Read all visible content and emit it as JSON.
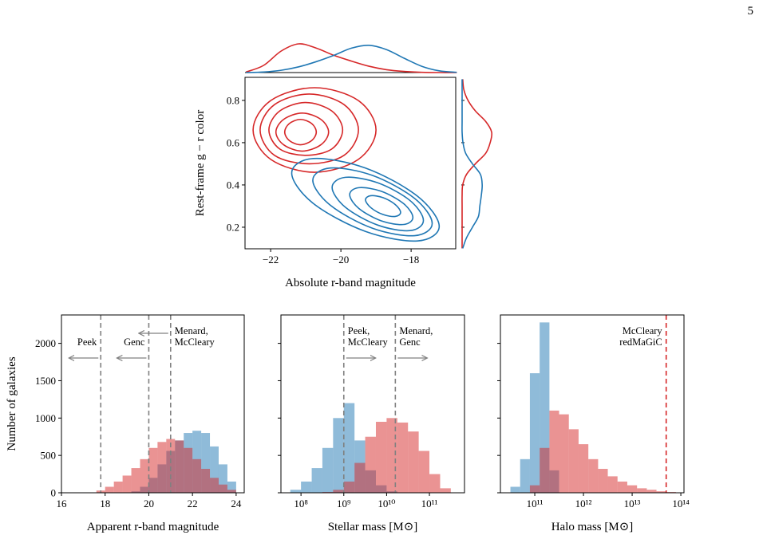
{
  "page_number": "5",
  "chart_data": [
    {
      "type": "contour",
      "xlabel": "Absolute r-band magnitude",
      "ylabel": "Rest-frame g − r color",
      "xlim": [
        -22.73,
        -16.73
      ],
      "ylim": [
        0.098,
        0.909
      ],
      "xticks": [
        {
          "value": -22,
          "label": "−22"
        },
        {
          "value": -20,
          "label": "−20"
        },
        {
          "value": -18,
          "label": "−18"
        }
      ],
      "yticks": [
        0.2,
        0.4,
        0.6,
        0.8
      ],
      "series": [
        {
          "color": "#d62728",
          "contours": [
            {
              "x": [
                -19.0,
                -19.51,
                -20.75,
                -21.99,
                -22.5,
                -21.99,
                -20.75,
                -19.51
              ],
              "y": [
                0.66,
                0.8,
                0.86,
                0.8,
                0.66,
                0.52,
                0.46,
                0.52
              ]
            },
            {
              "x": [
                -19.5,
                -19.91,
                -20.9,
                -21.89,
                -22.3,
                -21.89,
                -20.9,
                -19.91
              ],
              "y": [
                0.66,
                0.78,
                0.83,
                0.78,
                0.66,
                0.54,
                0.5,
                0.54
              ]
            },
            {
              "x": [
                -19.95,
                -20.26,
                -21.0,
                -21.74,
                -22.05,
                -21.74,
                -21.0,
                -20.26
              ],
              "y": [
                0.66,
                0.75,
                0.79,
                0.75,
                0.66,
                0.57,
                0.54,
                0.57
              ]
            },
            {
              "x": [
                -20.35,
                -20.57,
                -21.1,
                -21.63,
                -21.85,
                -21.63,
                -21.1,
                -20.57
              ],
              "y": [
                0.65,
                0.71,
                0.74,
                0.71,
                0.65,
                0.59,
                0.56,
                0.59
              ]
            },
            {
              "x": [
                -20.7,
                -20.83,
                -21.15,
                -21.47,
                -21.6,
                -21.47,
                -21.15,
                -20.83
              ],
              "y": [
                0.65,
                0.69,
                0.71,
                0.69,
                0.65,
                0.61,
                0.59,
                0.61
              ]
            }
          ]
        },
        {
          "color": "#1f77b4",
          "contours": [
            {
              "x": [
                -17.2,
                -17.82,
                -19.3,
                -20.79,
                -21.4,
                -20.79,
                -19.3,
                -17.82
              ],
              "y": [
                0.204,
                0.347,
                0.48,
                0.525,
                0.456,
                0.313,
                0.18,
                0.135
              ]
            },
            {
              "x": [
                -17.4,
                -17.9,
                -19.1,
                -20.3,
                -20.8,
                -20.3,
                -19.1,
                -17.9
              ],
              "y": [
                0.218,
                0.336,
                0.445,
                0.48,
                0.422,
                0.304,
                0.195,
                0.16
              ]
            },
            {
              "x": [
                -17.65,
                -18.03,
                -18.95,
                -19.87,
                -20.25,
                -19.87,
                -18.95,
                -18.03
              ],
              "y": [
                0.232,
                0.326,
                0.41,
                0.436,
                0.388,
                0.294,
                0.21,
                0.184
              ]
            },
            {
              "x": [
                -17.95,
                -18.21,
                -18.85,
                -19.49,
                -19.75,
                -19.49,
                -18.85,
                -18.21
              ],
              "y": [
                0.246,
                0.311,
                0.37,
                0.387,
                0.354,
                0.289,
                0.23,
                0.213
              ]
            },
            {
              "x": [
                -18.3,
                -18.45,
                -18.8,
                -19.15,
                -19.3,
                -19.15,
                -18.8,
                -18.45
              ],
              "y": [
                0.27,
                0.307,
                0.34,
                0.349,
                0.33,
                0.293,
                0.26,
                0.251
              ]
            }
          ]
        }
      ],
      "marginal_x": {
        "x": [
          -22.7,
          -22.2,
          -21.7,
          -21.2,
          -20.7,
          -20.2,
          -19.7,
          -19.2,
          -18.7,
          -18.2,
          -17.7,
          -17.2,
          -16.7
        ],
        "series": [
          {
            "color": "#d62728",
            "values": [
              0.02,
              0.25,
              0.75,
              1.0,
              0.85,
              0.6,
              0.4,
              0.22,
              0.1,
              0.04,
              0.01,
              0,
              0
            ]
          },
          {
            "color": "#1f77b4",
            "values": [
              0,
              0.02,
              0.08,
              0.2,
              0.38,
              0.6,
              0.85,
              0.95,
              0.8,
              0.5,
              0.22,
              0.06,
              0.01
            ]
          }
        ]
      },
      "marginal_y": {
        "y": [
          0.1,
          0.15,
          0.2,
          0.25,
          0.3,
          0.35,
          0.4,
          0.45,
          0.5,
          0.55,
          0.6,
          0.65,
          0.7,
          0.75,
          0.8,
          0.85,
          0.9
        ],
        "series": [
          {
            "color": "#d62728",
            "values": [
              0,
              0,
              0,
              0,
              0,
              0,
              0.02,
              0.15,
              0.45,
              0.8,
              0.95,
              1.0,
              0.8,
              0.45,
              0.2,
              0.06,
              0.02
            ]
          },
          {
            "color": "#1f77b4",
            "values": [
              0.02,
              0.15,
              0.35,
              0.55,
              0.6,
              0.65,
              0.68,
              0.62,
              0.35,
              0.12,
              0.03,
              0,
              0,
              0,
              0,
              0,
              0
            ]
          }
        ]
      }
    },
    {
      "type": "histogram",
      "xlabel": "Apparent r-band magnitude",
      "ylabel": "Number of galaxies",
      "log_x": false,
      "xlim": [
        16,
        24.37
      ],
      "ylim": [
        0,
        2380
      ],
      "xticks": [
        16,
        18,
        20,
        22,
        24
      ],
      "yticks": [
        0,
        500,
        1000,
        1500,
        2000
      ],
      "ytick_labels": true,
      "series": [
        {
          "color": "#1f77b4",
          "bins": [
            17.2,
            17.6,
            18.0,
            18.4,
            18.8,
            19.2,
            19.6,
            20.0,
            20.4,
            20.8,
            21.2,
            21.6,
            22.0,
            22.4,
            22.8,
            23.2,
            23.6,
            24.0
          ],
          "values": [
            0,
            0,
            0,
            0,
            5,
            20,
            80,
            200,
            380,
            560,
            700,
            800,
            830,
            800,
            620,
            380,
            150
          ]
        },
        {
          "color": "#d62728",
          "bins": [
            17.2,
            17.6,
            18.0,
            18.4,
            18.8,
            19.2,
            19.6,
            20.0,
            20.4,
            20.8,
            21.2,
            21.6,
            22.0,
            22.4,
            22.8,
            23.2,
            23.6,
            24.0
          ],
          "values": [
            5,
            30,
            80,
            150,
            230,
            330,
            450,
            600,
            680,
            720,
            700,
            600,
            450,
            320,
            200,
            110,
            40
          ]
        }
      ],
      "vlines": [
        {
          "x": 17.8,
          "color": "#808080",
          "text": [
            "Peek"
          ],
          "arrow": "left"
        },
        {
          "x": 20.0,
          "color": "#808080",
          "text": [
            "Genc"
          ],
          "arrow": "left"
        },
        {
          "x": 21.0,
          "color": "#808080",
          "text": [
            "Menard,",
            "McCleary"
          ],
          "arrow": "left"
        }
      ]
    },
    {
      "type": "histogram",
      "xlabel": "Stellar mass [M⊙]",
      "log_x": true,
      "xlim": [
        34000000.0,
        660000000000.0
      ],
      "ylim": [
        0,
        2380
      ],
      "xticks": [
        {
          "value": 100000000.0,
          "label": "10⁸"
        },
        {
          "value": 1000000000.0,
          "label": "10⁹"
        },
        {
          "value": 10000000000.0,
          "label": "10¹⁰"
        },
        {
          "value": 100000000000.0,
          "label": "10¹¹"
        }
      ],
      "yticks": [
        0,
        500,
        1000,
        1500,
        2000
      ],
      "ytick_labels": false,
      "series": [
        {
          "color": "#1f77b4",
          "bins": [
            56200000.0,
            100000000.0,
            178000000.0,
            316000000.0,
            562000000.0,
            1000000000.0,
            1780000000.0,
            3160000000.0,
            5620000000.0,
            10000000000.0,
            17800000000.0,
            31600000000.0,
            56200000000.0,
            100000000000.0,
            178000000000.0,
            316000000000.0
          ],
          "values": [
            40,
            150,
            330,
            600,
            1000,
            1200,
            700,
            300,
            100,
            20,
            0,
            0,
            0,
            0,
            0
          ]
        },
        {
          "color": "#d62728",
          "bins": [
            56200000.0,
            100000000.0,
            178000000.0,
            316000000.0,
            562000000.0,
            1000000000.0,
            1780000000.0,
            3160000000.0,
            5620000000.0,
            10000000000.0,
            17800000000.0,
            31600000000.0,
            56200000000.0,
            100000000000.0,
            178000000000.0,
            316000000000.0
          ],
          "values": [
            0,
            0,
            0,
            10,
            40,
            150,
            400,
            750,
            950,
            1000,
            940,
            820,
            560,
            250,
            60
          ]
        }
      ],
      "vlines": [
        {
          "x": 1000000000.0,
          "color": "#808080",
          "text": [
            "Peek,",
            "McCleary"
          ],
          "arrow": "right"
        },
        {
          "x": 16000000000.0,
          "color": "#808080",
          "text": [
            "Menard,",
            "Genc"
          ],
          "arrow": "right"
        }
      ]
    },
    {
      "type": "histogram",
      "xlabel": "Halo mass [M⊙]",
      "log_x": true,
      "xlim": [
        19700000000.0,
        116000000000000.0
      ],
      "ylim": [
        0,
        2380
      ],
      "xticks": [
        {
          "value": 100000000000.0,
          "label": "10¹¹"
        },
        {
          "value": 1000000000000.0,
          "label": "10¹²"
        },
        {
          "value": 10000000000000.0,
          "label": "10¹³"
        },
        {
          "value": 100000000000000.0,
          "label": "10¹⁴"
        }
      ],
      "yticks": [
        0,
        500,
        1000,
        1500,
        2000
      ],
      "ytick_labels": false,
      "series": [
        {
          "color": "#1f77b4",
          "bins": [
            31600000000.0,
            50100000000.0,
            79400000000.0,
            126000000000.0,
            200000000000.0,
            316000000000.0,
            501000000000.0,
            794000000000.0,
            1260000000000.0,
            2000000000000.0,
            3160000000000.0,
            5010000000000.0,
            7940000000000.0,
            12600000000000.0,
            20000000000000.0,
            31600000000000.0,
            50100000000000.0,
            79400000000000.0
          ],
          "values": [
            80,
            450,
            1600,
            2280,
            300,
            0,
            0,
            0,
            0,
            0,
            0,
            0,
            0,
            0,
            0,
            0,
            0
          ]
        },
        {
          "color": "#d62728",
          "bins": [
            31600000000.0,
            50100000000.0,
            79400000000.0,
            126000000000.0,
            200000000000.0,
            316000000000.0,
            501000000000.0,
            794000000000.0,
            1260000000000.0,
            2000000000000.0,
            3160000000000.0,
            5010000000000.0,
            7940000000000.0,
            12600000000000.0,
            20000000000000.0,
            31600000000000.0,
            50100000000000.0,
            79400000000000.0
          ],
          "values": [
            0,
            0,
            100,
            600,
            1100,
            1050,
            850,
            650,
            450,
            320,
            220,
            150,
            100,
            60,
            40,
            20,
            10
          ]
        }
      ],
      "vlines": [
        {
          "x": 50000000000000.0,
          "color": "#d62728",
          "text": [
            "McCleary",
            "redMaGiC"
          ]
        }
      ]
    }
  ]
}
